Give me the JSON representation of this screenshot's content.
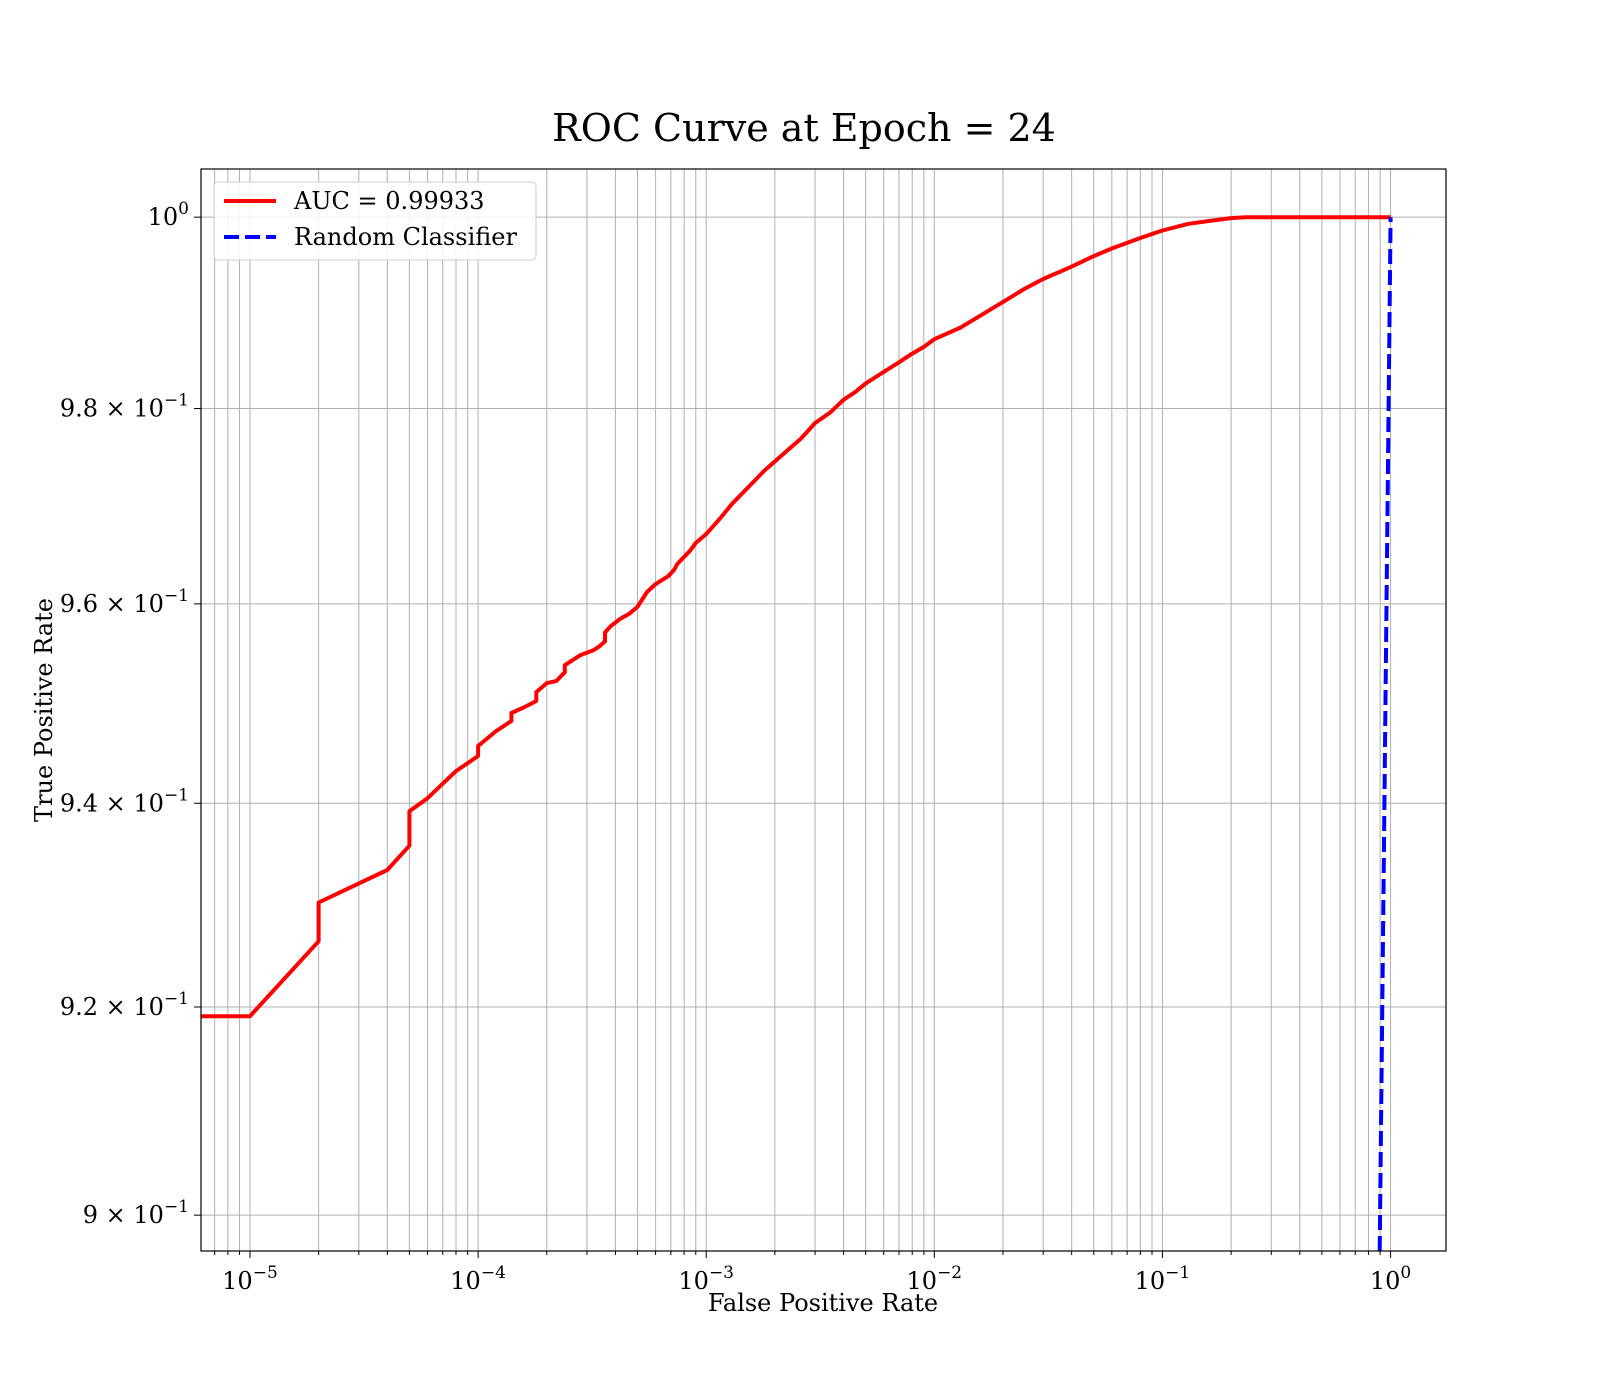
{
  "chart_data": {
    "type": "line",
    "title": "ROC Curve at Epoch = 24",
    "xlabel": "False Positive Rate",
    "ylabel": "True Positive Rate",
    "xscale": "log",
    "yscale": "log",
    "xlim": [
      6.1e-06,
      1.75
    ],
    "ylim": [
      0.8966,
      1.0051
    ],
    "grid": "both",
    "legend_position": "top-left",
    "xticks": [
      {
        "value": 1e-05,
        "base": "10",
        "exp": "−5"
      },
      {
        "value": 0.0001,
        "base": "10",
        "exp": "−4"
      },
      {
        "value": 0.001,
        "base": "10",
        "exp": "−3"
      },
      {
        "value": 0.01,
        "base": "10",
        "exp": "−2"
      },
      {
        "value": 0.1,
        "base": "10",
        "exp": "−1"
      },
      {
        "value": 1,
        "base": "10",
        "exp": "0"
      }
    ],
    "yticks": [
      {
        "value": 1.0,
        "base": "10",
        "exp": "0"
      },
      {
        "value": 0.98,
        "base": "9.8 × 10",
        "exp": "−1"
      },
      {
        "value": 0.96,
        "base": "9.6 × 10",
        "exp": "−1"
      },
      {
        "value": 0.94,
        "base": "9.4 × 10",
        "exp": "−1"
      },
      {
        "value": 0.92,
        "base": "9.2 × 10",
        "exp": "−1"
      },
      {
        "value": 0.9,
        "base": "9 × 10",
        "exp": "−1"
      }
    ],
    "series": [
      {
        "name": "AUC = 0.99933",
        "color": "#ff0000",
        "style": "solid",
        "x": [
          6.1e-06,
          1e-05,
          2e-05,
          2e-05,
          4e-05,
          5e-05,
          5e-05,
          6e-05,
          8e-05,
          0.0001,
          0.0001,
          0.00012,
          0.00014,
          0.00014,
          0.00016,
          0.00018,
          0.00018,
          0.0002,
          0.00022,
          0.00024,
          0.00024,
          0.00028,
          0.00032,
          0.00034,
          0.00036,
          0.00036,
          0.00038,
          0.00042,
          0.00046,
          0.0005,
          0.00055,
          0.0006,
          0.00068,
          0.00072,
          0.00075,
          0.00085,
          0.0009,
          0.001,
          0.00115,
          0.0013,
          0.0015,
          0.0018,
          0.0022,
          0.0026,
          0.003,
          0.0035,
          0.004,
          0.0045,
          0.005,
          0.006,
          0.007,
          0.008,
          0.009,
          0.01,
          0.013,
          0.016,
          0.02,
          0.025,
          0.03,
          0.04,
          0.05,
          0.06,
          0.08,
          0.1,
          0.13,
          0.16,
          0.2,
          0.23,
          0.3,
          0.5,
          1.0
        ],
        "y": [
          0.9191,
          0.9191,
          0.9264,
          0.9302,
          0.9334,
          0.9358,
          0.9392,
          0.9405,
          0.9432,
          0.9447,
          0.9457,
          0.9472,
          0.9482,
          0.949,
          0.9496,
          0.9502,
          0.9511,
          0.952,
          0.9522,
          0.9531,
          0.9538,
          0.9548,
          0.9553,
          0.9557,
          0.9562,
          0.9571,
          0.9577,
          0.9585,
          0.959,
          0.9597,
          0.9612,
          0.962,
          0.9628,
          0.9634,
          0.9641,
          0.9654,
          0.9662,
          0.9671,
          0.9687,
          0.9702,
          0.9717,
          0.9736,
          0.9754,
          0.9769,
          0.9785,
          0.9796,
          0.9809,
          0.9817,
          0.9826,
          0.9838,
          0.9848,
          0.9857,
          0.9864,
          0.9872,
          0.9884,
          0.9897,
          0.9911,
          0.9925,
          0.9935,
          0.9948,
          0.9959,
          0.9967,
          0.9978,
          0.9986,
          0.9993,
          0.9996,
          0.9999,
          1.0,
          1.0,
          1.0,
          1.0
        ]
      },
      {
        "name": "Random Classifier",
        "color": "#0000ff",
        "style": "dashed",
        "x": [
          0.8966,
          1.0
        ],
        "y": [
          0.8966,
          1.0
        ]
      }
    ]
  }
}
